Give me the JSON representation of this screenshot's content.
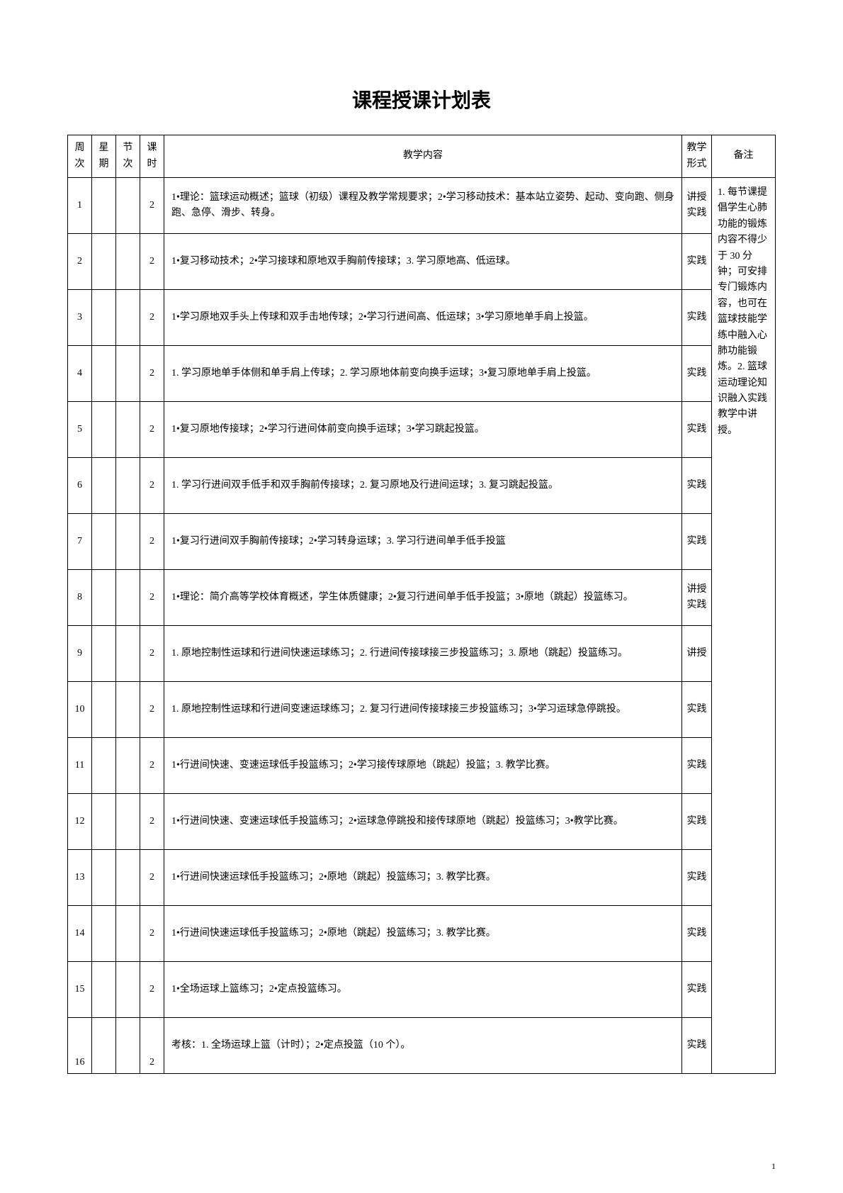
{
  "title": "课程授课计划表",
  "headers": {
    "week": "周次",
    "day": "星期",
    "period": "节次",
    "hours": "课时",
    "content": "教学内容",
    "form": "教学形式",
    "remark": "备注"
  },
  "remark_text": "1. 每节课提倡学生心肺功能的锻炼内容不得少于 30 分钟；可安排专门锻炼内容，也可在篮球技能学练中融入心肺功能锻炼。2. 篮球运动理论知识融入实践教学中讲授。",
  "rows": [
    {
      "week": "1",
      "hours": "2",
      "content": "1•理论：篮球运动概述；篮球（初级）课程及教学常规要求；2•学习移动技术：基本站立姿势、起动、变向跑、侧身跑、急停、滑步、转身。",
      "form": "讲授实践"
    },
    {
      "week": "2",
      "hours": "2",
      "content": "1•复习移动技术；2•学习接球和原地双手胸前传接球；3. 学习原地高、低运球。",
      "form": "实践"
    },
    {
      "week": "3",
      "hours": "2",
      "content": "1•学习原地双手头上传球和双手击地传球；2•学习行进间高、低运球；3•学习原地单手肩上投篮。",
      "form": "实践"
    },
    {
      "week": "4",
      "hours": "2",
      "content": "1. 学习原地单手体侧和单手肩上传球；2. 学习原地体前变向换手运球；3•复习原地单手肩上投篮。",
      "form": "实践"
    },
    {
      "week": "5",
      "hours": "2",
      "content": "1•复习原地传接球；2•学习行进间体前变向换手运球；3•学习跳起投篮。",
      "form": "实践"
    },
    {
      "week": "6",
      "hours": "2",
      "content": "1. 学习行进间双手低手和双手胸前传接球；2. 复习原地及行进间运球；3. 复习跳起投篮。",
      "form": "实践"
    },
    {
      "week": "7",
      "hours": "2",
      "content": "1•复习行进间双手胸前传接球；2•学习转身运球；3. 学习行进间单手低手投篮",
      "form": "实践"
    },
    {
      "week": "8",
      "hours": "2",
      "content": "1•理论：简介高等学校体育概述，学生体质健康；2•复习行进间单手低手投篮；3•原地（跳起）投篮练习。",
      "form": "讲授实践"
    },
    {
      "week": "9",
      "hours": "2",
      "content": "1. 原地控制性运球和行进间快速运球练习；2. 行进间传接球接三步投篮练习；3. 原地（跳起）投篮练习。",
      "form": "讲授"
    },
    {
      "week": "10",
      "hours": "2",
      "content": "1. 原地控制性运球和行进间变速运球练习；2. 复习行进间传接球接三步投篮练习；3•学习运球急停跳投。",
      "form": "实践"
    },
    {
      "week": "11",
      "hours": "2",
      "content": "1•行进间快速、变速运球低手投篮练习；2•学习接传球原地（跳起）投篮；3. 教学比赛。",
      "form": "实践"
    },
    {
      "week": "12",
      "hours": "2",
      "content": "1•行进间快速、变速运球低手投篮练习；2•运球急停跳投和接传球原地（跳起）投篮练习；3•教学比赛。",
      "form": "实践"
    },
    {
      "week": "13",
      "hours": "2",
      "content": "1•行进间快速运球低手投篮练习；2•原地（跳起）投篮练习；3. 教学比赛。",
      "form": "实践"
    },
    {
      "week": "14",
      "hours": "2",
      "content": "1•行进间快速运球低手投篮练习；2•原地（跳起）投篮练习；3. 教学比赛。",
      "form": "实践"
    },
    {
      "week": "15",
      "hours": "2",
      "content": "1•全场运球上篮练习；2•定点投篮练习。",
      "form": "实践"
    },
    {
      "week": "16",
      "hours": "2",
      "content": "考核：1. 全场运球上篮（计时）；2•定点投篮（10 个）。",
      "form": "实践"
    }
  ],
  "page_number": "1"
}
